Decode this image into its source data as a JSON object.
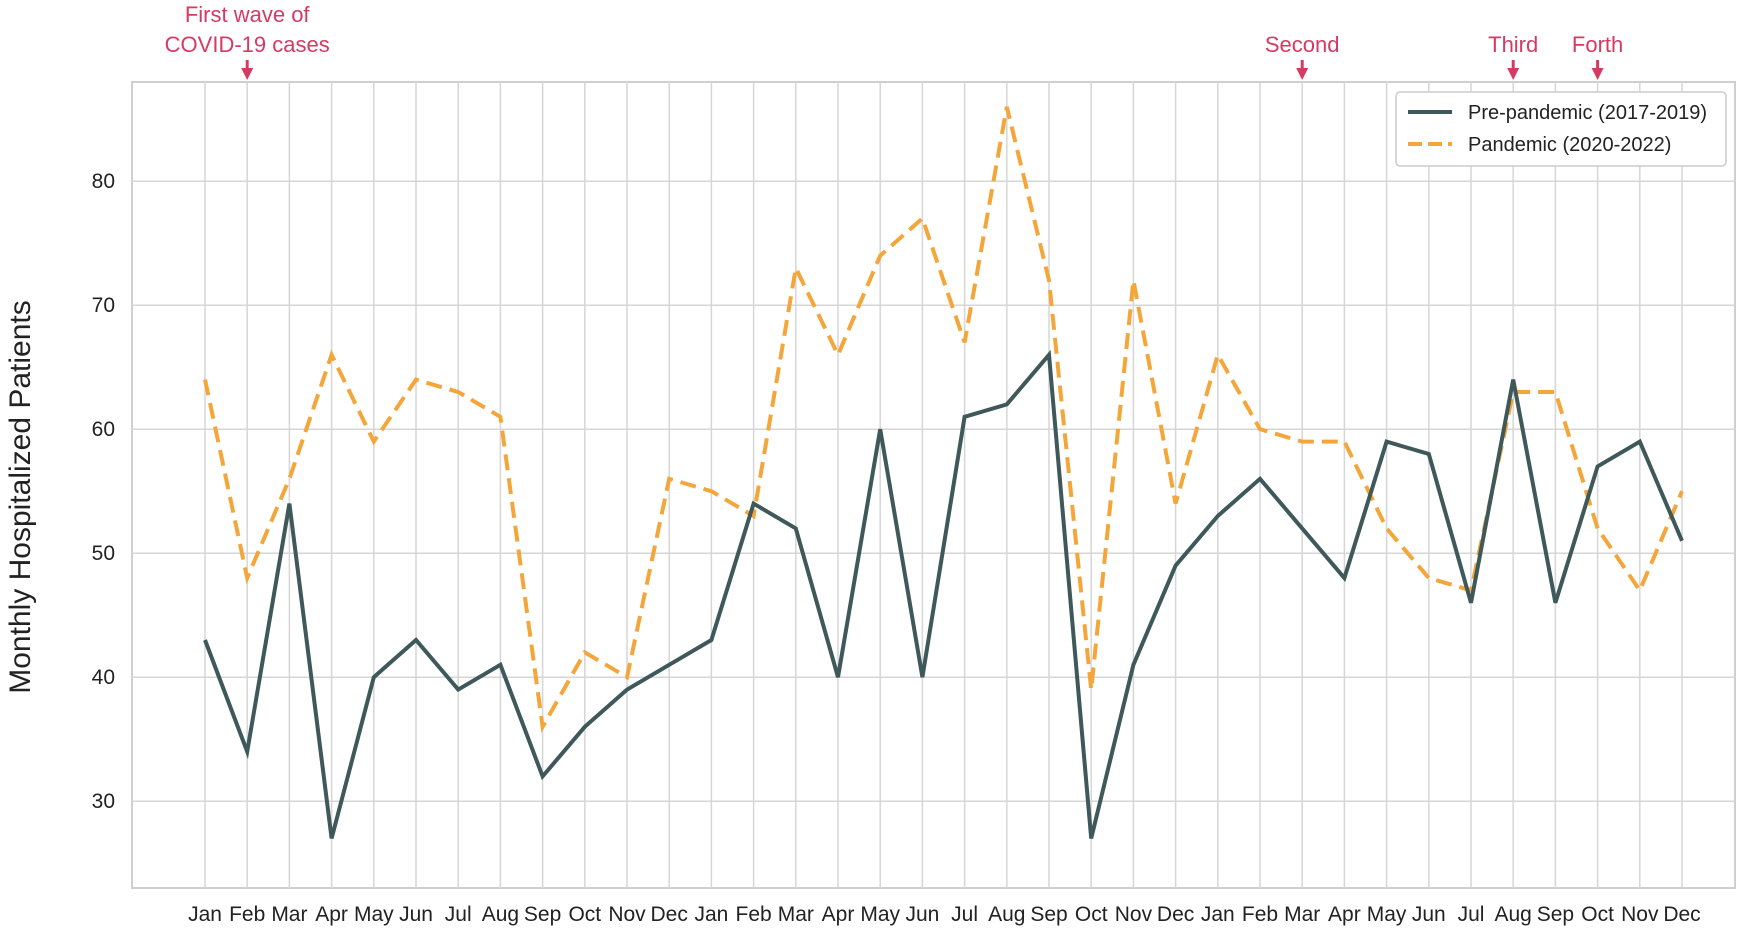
{
  "chart_data": {
    "type": "line",
    "title": "",
    "xlabel": "",
    "ylabel": "Monthly Hospitalized Patients",
    "categories": [
      "Jan",
      "Feb",
      "Mar",
      "Apr",
      "May",
      "Jun",
      "Jul",
      "Aug",
      "Sep",
      "Oct",
      "Nov",
      "Dec",
      "Jan",
      "Feb",
      "Mar",
      "Apr",
      "May",
      "Jun",
      "Jul",
      "Aug",
      "Sep",
      "Oct",
      "Nov",
      "Dec",
      "Jan",
      "Feb",
      "Mar",
      "Apr",
      "May",
      "Jun",
      "Jul",
      "Aug",
      "Sep",
      "Oct",
      "Nov",
      "Dec"
    ],
    "ylim": [
      23,
      88
    ],
    "yticks": [
      30,
      40,
      50,
      60,
      70,
      80
    ],
    "grid": true,
    "legend_position": "top-right",
    "series": [
      {
        "name": "Pre-pandemic (2017-2019)",
        "style": "solid",
        "color": "#3f585a",
        "values": [
          43,
          34,
          54,
          27,
          40,
          43,
          39,
          41,
          32,
          36,
          39,
          41,
          43,
          54,
          52,
          40,
          60,
          40,
          61,
          62,
          66,
          27,
          41,
          49,
          53,
          56,
          52,
          48,
          59,
          58,
          46,
          64,
          46,
          57,
          59,
          51
        ]
      },
      {
        "name": "Pandemic (2020-2022)",
        "style": "dashed",
        "color": "#f4a63a",
        "values": [
          64,
          48,
          56,
          66,
          59,
          64,
          63,
          61,
          36,
          42,
          40,
          56,
          55,
          53,
          73,
          66,
          74,
          77,
          67,
          86,
          72,
          39,
          72,
          54,
          66,
          60,
          59,
          59,
          52,
          48,
          47,
          63,
          63,
          52,
          47,
          55
        ]
      }
    ],
    "annotations": [
      {
        "text": [
          "First wave of",
          "COVID-19 cases"
        ],
        "month_index": 1
      },
      {
        "text": [
          "Second"
        ],
        "month_index": 26
      },
      {
        "text": [
          "Third"
        ],
        "month_index": 31
      },
      {
        "text": [
          "Forth"
        ],
        "month_index": 33
      }
    ],
    "colors": {
      "annotation": "#d63a62",
      "grid": "#d6d6d6",
      "axis_text": "#222222"
    }
  }
}
